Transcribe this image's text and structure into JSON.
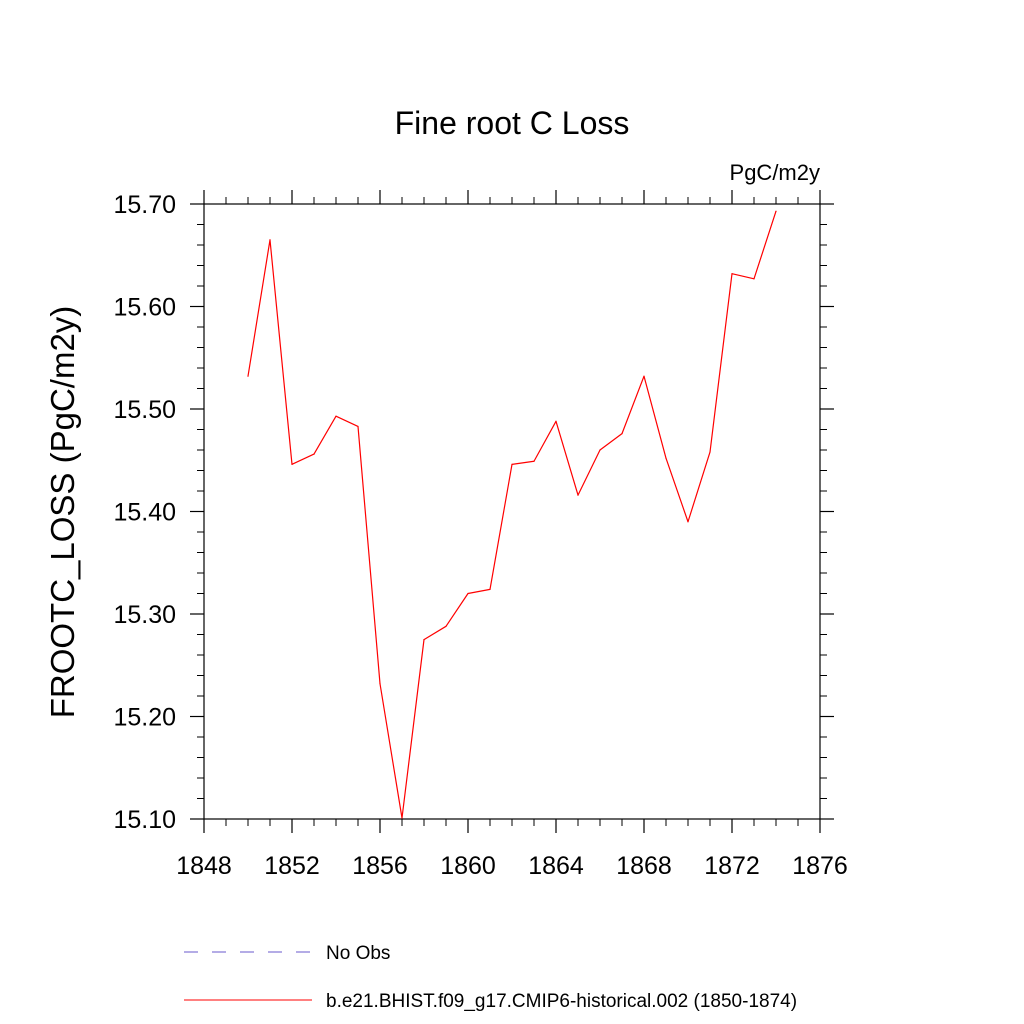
{
  "chart_data": {
    "type": "line",
    "title": "Fine root C Loss",
    "units_label": "PgC/m2y",
    "ylabel": "FROOTC_LOSS  (PgC/m2y)",
    "xlabel": "",
    "xlim": [
      1848,
      1876
    ],
    "ylim": [
      15.1,
      15.7
    ],
    "x_ticks": [
      "1848",
      "1852",
      "1856",
      "1860",
      "1864",
      "1868",
      "1872",
      "1876"
    ],
    "y_ticks": [
      "15.10",
      "15.20",
      "15.30",
      "15.40",
      "15.50",
      "15.60",
      "15.70"
    ],
    "x": [
      1850,
      1851,
      1852,
      1853,
      1854,
      1855,
      1856,
      1857,
      1858,
      1859,
      1860,
      1861,
      1862,
      1863,
      1864,
      1865,
      1866,
      1867,
      1868,
      1869,
      1870,
      1871,
      1872,
      1873,
      1874
    ],
    "series": [
      {
        "name": "b.e21.BHIST.f09_g17.CMIP6-historical.002 (1850-1874)",
        "color": "#ff0000",
        "values": [
          15.532,
          15.665,
          15.446,
          15.456,
          15.493,
          15.483,
          15.232,
          15.101,
          15.275,
          15.288,
          15.32,
          15.324,
          15.446,
          15.449,
          15.488,
          15.416,
          15.46,
          15.476,
          15.532,
          15.452,
          15.39,
          15.458,
          15.632,
          15.627,
          15.693
        ]
      }
    ],
    "legend": [
      {
        "label": "No Obs",
        "color": "#6a5acd",
        "style": "dashed"
      },
      {
        "label": "b.e21.BHIST.f09_g17.CMIP6-historical.002 (1850-1874)",
        "color": "#ff0000",
        "style": "solid"
      }
    ],
    "legend_position": "bottom",
    "grid": false
  }
}
